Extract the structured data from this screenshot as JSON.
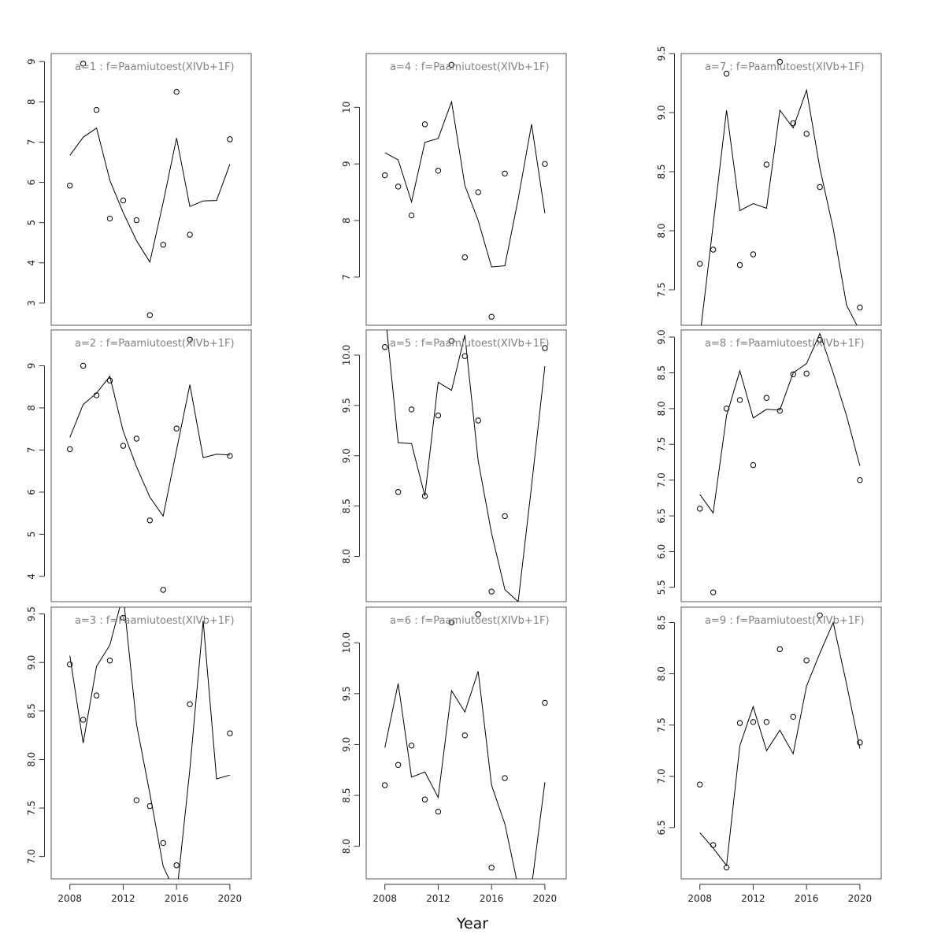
{
  "figure": {
    "xlabel": "Year"
  },
  "chart_data": [
    {
      "type": "scatter",
      "title": "a=1 : f=Paamiutoest(XIVb+1F)",
      "xlim": [
        2006.6,
        2021.6
      ],
      "ylim": [
        2.45,
        9.2
      ],
      "xticks": [],
      "yticks": [
        3,
        4,
        5,
        6,
        7,
        8,
        9
      ],
      "series": [
        {
          "kind": "line",
          "x": [
            2008,
            2009,
            2010,
            2011,
            2012,
            2013,
            2014,
            2015,
            2016,
            2017,
            2018,
            2019,
            2020
          ],
          "y": [
            6.67,
            7.12,
            7.35,
            6.05,
            5.25,
            4.55,
            4.02,
            5.5,
            7.1,
            5.4,
            5.54,
            5.55,
            6.45
          ]
        },
        {
          "kind": "points",
          "x": [
            2008,
            2009,
            2010,
            2011,
            2012,
            2013,
            2014,
            2015,
            2016,
            2017,
            2020
          ],
          "y": [
            5.92,
            8.95,
            7.8,
            5.1,
            5.55,
            5.06,
            2.7,
            4.45,
            8.25,
            4.7,
            7.07
          ]
        }
      ]
    },
    {
      "type": "scatter",
      "title": "a=2 : f=Paamiutoest(XIVb+1F)",
      "xlim": [
        2006.6,
        2021.6
      ],
      "ylim": [
        3.4,
        9.85
      ],
      "xticks": [],
      "yticks": [
        4,
        5,
        6,
        7,
        8,
        9
      ],
      "series": [
        {
          "kind": "line",
          "x": [
            2008,
            2009,
            2010,
            2011,
            2012,
            2013,
            2014,
            2015,
            2016,
            2017,
            2018,
            2019,
            2020
          ],
          "y": [
            7.3,
            8.08,
            8.35,
            8.75,
            7.45,
            6.6,
            5.88,
            5.43,
            7.0,
            8.55,
            6.82,
            6.9,
            6.88
          ]
        },
        {
          "kind": "points",
          "x": [
            2008,
            2009,
            2010,
            2011,
            2012,
            2013,
            2014,
            2015,
            2016,
            2017,
            2020
          ],
          "y": [
            7.02,
            9.0,
            8.3,
            8.65,
            7.1,
            7.27,
            5.33,
            3.68,
            7.51,
            9.62,
            6.86
          ]
        }
      ]
    },
    {
      "type": "scatter",
      "title": "a=3 : f=Paamiutoest(XIVb+1F)",
      "xlim": [
        2006.6,
        2021.6
      ],
      "ylim": [
        6.77,
        9.57
      ],
      "xticks": [
        2008,
        2012,
        2016,
        2020
      ],
      "yticks": [
        7.0,
        7.5,
        8.0,
        8.5,
        9.0,
        9.5
      ],
      "series": [
        {
          "kind": "line",
          "x": [
            2008,
            2009,
            2010,
            2011,
            2012,
            2013,
            2014,
            2015,
            2016,
            2017,
            2018,
            2019,
            2020
          ],
          "y": [
            9.07,
            8.17,
            8.96,
            9.18,
            9.7,
            8.36,
            7.65,
            6.9,
            6.6,
            7.9,
            9.43,
            7.8,
            7.84
          ]
        },
        {
          "kind": "points",
          "x": [
            2008,
            2009,
            2010,
            2011,
            2012,
            2013,
            2014,
            2015,
            2016,
            2017,
            2020
          ],
          "y": [
            8.98,
            8.41,
            8.66,
            9.02,
            9.46,
            7.58,
            7.52,
            7.14,
            6.91,
            8.57,
            8.27
          ]
        }
      ]
    },
    {
      "type": "scatter",
      "title": "a=4 : f=Paamiutoest(XIVb+1F)",
      "xlim": [
        2006.6,
        2021.6
      ],
      "ylim": [
        6.15,
        10.95
      ],
      "xticks": [],
      "yticks": [
        7,
        8,
        9,
        10
      ],
      "series": [
        {
          "kind": "line",
          "x": [
            2008,
            2009,
            2010,
            2011,
            2012,
            2013,
            2014,
            2015,
            2016,
            2017,
            2018,
            2019,
            2020
          ],
          "y": [
            9.2,
            9.07,
            8.33,
            9.38,
            9.45,
            10.1,
            8.62,
            8.0,
            7.18,
            7.2,
            8.38,
            9.7,
            8.13
          ]
        },
        {
          "kind": "points",
          "x": [
            2008,
            2009,
            2010,
            2011,
            2012,
            2013,
            2014,
            2015,
            2016,
            2017,
            2020
          ],
          "y": [
            8.8,
            8.6,
            8.09,
            9.7,
            8.88,
            10.75,
            7.35,
            8.5,
            6.3,
            8.83,
            9.0
          ]
        }
      ]
    },
    {
      "type": "scatter",
      "title": "a=5 : f=Paamiutoest(XIVb+1F)",
      "xlim": [
        2006.6,
        2021.6
      ],
      "ylim": [
        7.55,
        10.25
      ],
      "xticks": [],
      "yticks": [
        8.0,
        8.5,
        9.0,
        9.5,
        10.0
      ],
      "series": [
        {
          "kind": "line",
          "x": [
            2008,
            2009,
            2010,
            2011,
            2012,
            2013,
            2014,
            2015,
            2016,
            2017,
            2018,
            2019,
            2020
          ],
          "y": [
            10.45,
            9.13,
            9.12,
            8.6,
            9.73,
            9.65,
            10.2,
            8.95,
            8.23,
            7.67,
            7.55,
            8.7,
            9.89
          ]
        },
        {
          "kind": "points",
          "x": [
            2008,
            2009,
            2010,
            2011,
            2012,
            2013,
            2014,
            2015,
            2016,
            2017,
            2020
          ],
          "y": [
            10.08,
            8.64,
            9.46,
            8.6,
            9.4,
            10.14,
            9.99,
            9.35,
            7.65,
            8.4,
            10.07
          ]
        }
      ]
    },
    {
      "type": "scatter",
      "title": "a=6 : f=Paamiutoest(XIVb+1F)",
      "xlim": [
        2006.6,
        2021.6
      ],
      "ylim": [
        7.68,
        10.35
      ],
      "xticks": [
        2008,
        2012,
        2016,
        2020
      ],
      "yticks": [
        8.0,
        8.5,
        9.0,
        9.5,
        10.0
      ],
      "series": [
        {
          "kind": "line",
          "x": [
            2008,
            2009,
            2010,
            2011,
            2012,
            2013,
            2014,
            2015,
            2016,
            2017,
            2018,
            2019,
            2020
          ],
          "y": [
            8.97,
            9.6,
            8.68,
            8.73,
            8.48,
            9.53,
            9.32,
            9.72,
            8.6,
            8.22,
            7.6,
            7.6,
            8.63
          ]
        },
        {
          "kind": "points",
          "x": [
            2008,
            2009,
            2010,
            2011,
            2012,
            2013,
            2014,
            2015,
            2016,
            2017,
            2020
          ],
          "y": [
            8.6,
            8.8,
            8.99,
            8.46,
            8.34,
            10.2,
            9.09,
            10.28,
            7.79,
            8.67,
            9.41
          ]
        }
      ]
    },
    {
      "type": "scatter",
      "title": "a=7 : f=Paamiutoest(XIVb+1F)",
      "xlim": [
        2006.6,
        2021.6
      ],
      "ylim": [
        7.2,
        9.5
      ],
      "xticks": [],
      "yticks": [
        7.5,
        8.0,
        8.5,
        9.0,
        9.5
      ],
      "series": [
        {
          "kind": "line",
          "x": [
            2008,
            2009,
            2010,
            2011,
            2012,
            2013,
            2014,
            2015,
            2016,
            2017,
            2018,
            2019,
            2020
          ],
          "y": [
            7.1,
            8.05,
            9.02,
            8.17,
            8.23,
            8.19,
            9.02,
            8.87,
            9.19,
            8.53,
            8.02,
            7.37,
            7.15
          ]
        },
        {
          "kind": "points",
          "x": [
            2008,
            2009,
            2010,
            2011,
            2012,
            2013,
            2014,
            2015,
            2016,
            2017,
            2020
          ],
          "y": [
            7.72,
            7.84,
            9.33,
            7.71,
            7.8,
            8.56,
            9.43,
            8.91,
            8.82,
            8.37,
            7.35
          ]
        }
      ]
    },
    {
      "type": "scatter",
      "title": "a=8 : f=Paamiutoest(XIVb+1F)",
      "xlim": [
        2006.6,
        2021.6
      ],
      "ylim": [
        5.3,
        9.1
      ],
      "xticks": [],
      "yticks": [
        5.5,
        6.0,
        6.5,
        7.0,
        7.5,
        8.0,
        8.5,
        9.0
      ],
      "series": [
        {
          "kind": "line",
          "x": [
            2008,
            2009,
            2010,
            2011,
            2012,
            2013,
            2014,
            2015,
            2016,
            2017,
            2018,
            2019,
            2020
          ],
          "y": [
            6.8,
            6.54,
            7.9,
            8.53,
            7.87,
            7.99,
            7.98,
            8.5,
            8.63,
            9.05,
            8.5,
            7.9,
            7.2
          ]
        },
        {
          "kind": "points",
          "x": [
            2008,
            2009,
            2010,
            2011,
            2012,
            2013,
            2014,
            2015,
            2016,
            2017,
            2020
          ],
          "y": [
            6.6,
            5.43,
            8.0,
            8.12,
            7.21,
            8.15,
            7.97,
            8.48,
            8.49,
            8.96,
            7.0
          ]
        }
      ]
    },
    {
      "type": "scatter",
      "title": "a=9 : f=Paamiutoest(XIVb+1F)",
      "xlim": [
        2006.6,
        2021.6
      ],
      "ylim": [
        6.0,
        8.65
      ],
      "xticks": [
        2008,
        2012,
        2016,
        2020
      ],
      "yticks": [
        6.5,
        7.0,
        7.5,
        8.0,
        8.5
      ],
      "series": [
        {
          "kind": "line",
          "x": [
            2008,
            2009,
            2010,
            2011,
            2012,
            2013,
            2014,
            2015,
            2016,
            2017,
            2018,
            2019,
            2020
          ],
          "y": [
            6.45,
            6.3,
            6.13,
            7.3,
            7.68,
            7.25,
            7.45,
            7.22,
            7.88,
            8.2,
            8.5,
            7.9,
            7.27
          ]
        },
        {
          "kind": "points",
          "x": [
            2008,
            2009,
            2010,
            2011,
            2012,
            2013,
            2014,
            2015,
            2016,
            2017,
            2020
          ],
          "y": [
            6.92,
            6.33,
            6.11,
            7.52,
            7.53,
            7.53,
            8.24,
            7.58,
            8.13,
            8.57,
            7.33
          ]
        }
      ]
    }
  ]
}
